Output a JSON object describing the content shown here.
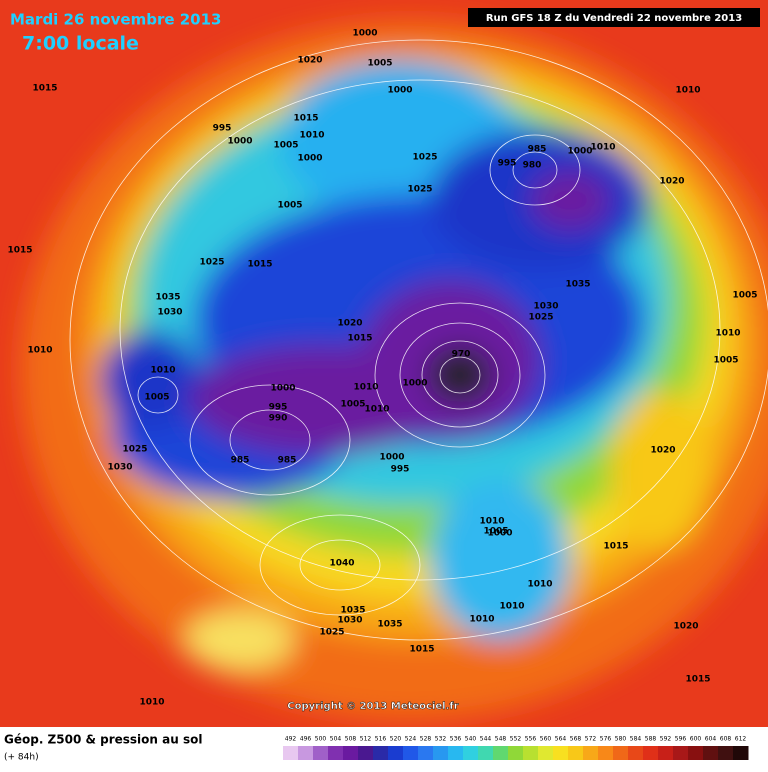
{
  "header": {
    "date": "Mardi 26 novembre 2013",
    "time": "7:00 locale",
    "run": "Run GFS 18 Z du Vendredi 22 novembre 2013"
  },
  "map": {
    "isobar_labels": [
      1000,
      1020,
      1005,
      1015,
      1000,
      1010,
      995,
      1000,
      1015,
      1010,
      1005,
      1000,
      1025,
      985,
      1000,
      1010,
      995,
      980,
      1020,
      1025,
      1005,
      1015,
      1025,
      1015,
      1035,
      1030,
      1035,
      1030,
      1025,
      1005,
      1020,
      1010,
      1015,
      1010,
      970,
      1005,
      1010,
      1000,
      1010,
      1000,
      1005,
      1005,
      1010,
      995,
      990,
      985,
      985,
      1000,
      995,
      1025,
      1030,
      1020,
      1010,
      1005,
      1000,
      1015,
      1040,
      1010,
      1010,
      1035,
      1030,
      1035,
      1025,
      1010,
      1020,
      1015,
      1015,
      1010
    ]
  },
  "footer": {
    "copyright": "Copyright © 2013 Meteociel.fr",
    "title": "Géop. Z500 & pression au sol",
    "lead": "(+ 84h)"
  },
  "colorbar": {
    "labels": [
      492,
      496,
      500,
      504,
      508,
      512,
      516,
      520,
      524,
      528,
      532,
      536,
      540,
      544,
      548,
      552,
      556,
      560,
      564,
      568,
      572,
      576,
      580,
      584,
      588,
      592,
      596,
      600,
      604,
      608,
      612
    ],
    "colors": [
      "#e8c8f0",
      "#c898e0",
      "#a060c8",
      "#8030b0",
      "#6a1aa0",
      "#4a1890",
      "#2a2aa8",
      "#1a3cd0",
      "#2058e8",
      "#2a78f0",
      "#2898f0",
      "#28b8f0",
      "#30d0e0",
      "#40d8b0",
      "#60d870",
      "#90d838",
      "#b8e030",
      "#e0e830",
      "#f8e020",
      "#f8c818",
      "#f8a818",
      "#f88818",
      "#f06818",
      "#e84818",
      "#e03018",
      "#c82018",
      "#a81818",
      "#881010",
      "#601010",
      "#401010",
      "#200808"
    ]
  }
}
